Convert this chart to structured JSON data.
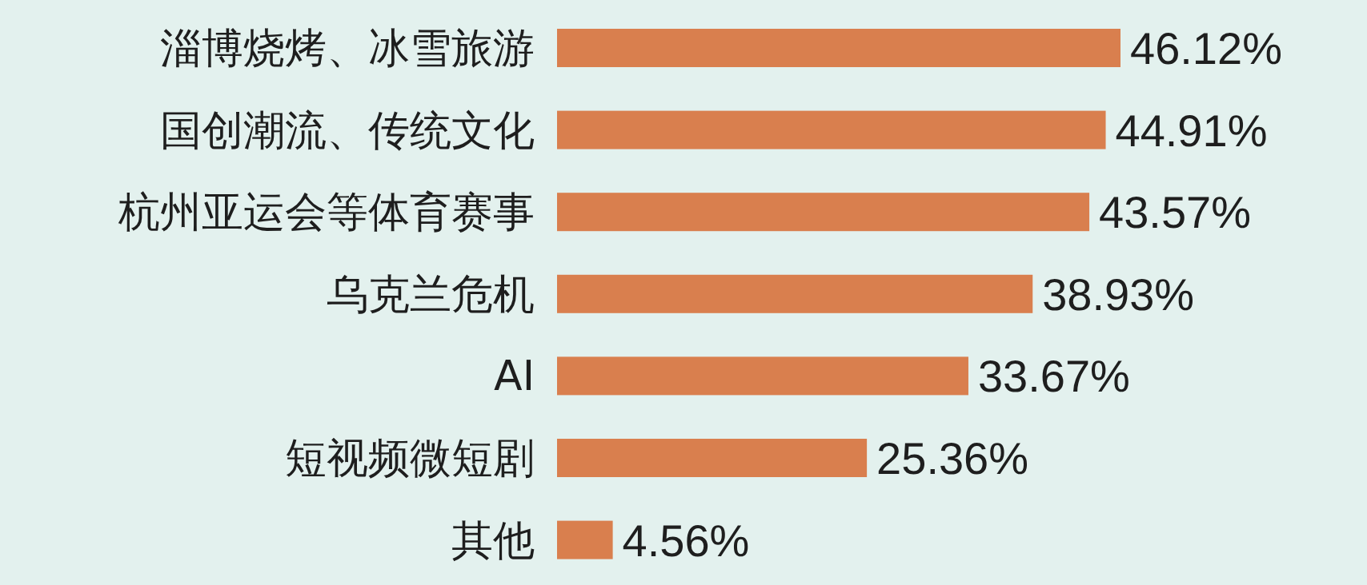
{
  "chart_data": {
    "type": "bar",
    "orientation": "horizontal",
    "categories": [
      "淄博烧烤、冰雪旅游",
      "国创潮流、传统文化",
      "杭州亚运会等体育赛事",
      "乌克兰危机",
      "AI",
      "短视频微短剧",
      "其他"
    ],
    "values": [
      46.12,
      44.91,
      43.57,
      38.93,
      33.67,
      25.36,
      4.56
    ],
    "value_labels": [
      "46.12%",
      "44.91%",
      "43.57%",
      "38.93%",
      "33.67%",
      "25.36%",
      "4.56%"
    ],
    "color": "#d97f4e"
  }
}
